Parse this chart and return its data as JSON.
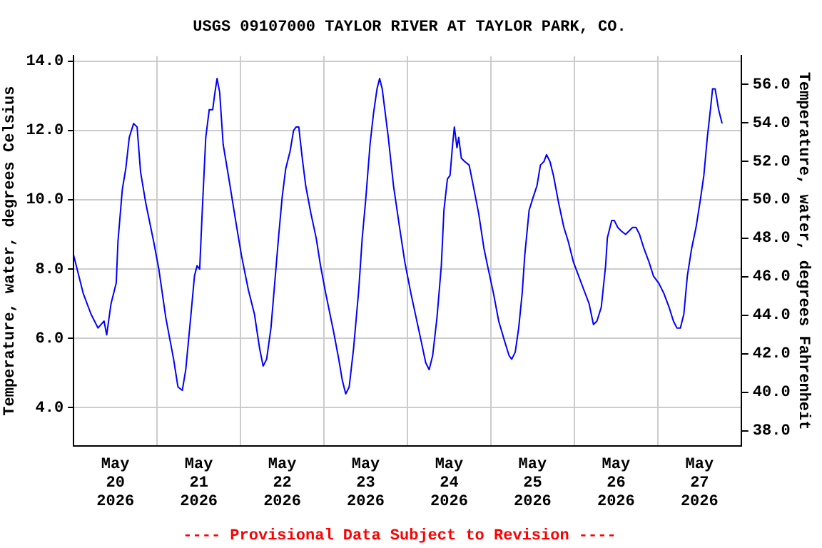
{
  "chart_data": {
    "type": "line",
    "title": "USGS 09107000 TAYLOR RIVER AT TAYLOR PARK, CO.",
    "ylabel": "Temperature, water, degrees Celsius",
    "y2label": "Temperature, water, degrees Fahrenheit",
    "annotations": [
      "---- Provisional Data Subject to Revision ----"
    ],
    "x": [
      "2026-05-20T00:00",
      "2026-05-20T02:45",
      "2026-05-20T05:00",
      "2026-05-20T07:00",
      "2026-05-20T08:45",
      "2026-05-20T09:30",
      "2026-05-20T10:45",
      "2026-05-20T12:15",
      "2026-05-20T12:45",
      "2026-05-20T14:00",
      "2026-05-20T15:00",
      "2026-05-20T16:00",
      "2026-05-20T17:15",
      "2026-05-20T18:15",
      "2026-05-20T19:15",
      "2026-05-20T20:45",
      "2026-05-20T23:00",
      "2026-05-21T00:30",
      "2026-05-21T02:30",
      "2026-05-21T04:45",
      "2026-05-21T06:00",
      "2026-05-21T07:15",
      "2026-05-21T08:15",
      "2026-05-21T09:45",
      "2026-05-21T10:45",
      "2026-05-21T11:30",
      "2026-05-21T12:15",
      "2026-05-21T13:00",
      "2026-05-21T14:00",
      "2026-05-21T15:00",
      "2026-05-21T16:00",
      "2026-05-21T16:30",
      "2026-05-21T17:15",
      "2026-05-21T18:00",
      "2026-05-21T19:00",
      "2026-05-21T20:30",
      "2026-05-21T22:45",
      "2026-05-22T00:15",
      "2026-05-22T02:15",
      "2026-05-22T04:00",
      "2026-05-22T05:30",
      "2026-05-22T06:30",
      "2026-05-22T07:30",
      "2026-05-22T08:45",
      "2026-05-22T10:00",
      "2026-05-22T11:00",
      "2026-05-22T12:00",
      "2026-05-22T13:00",
      "2026-05-22T14:15",
      "2026-05-22T15:15",
      "2026-05-22T16:00",
      "2026-05-22T16:45",
      "2026-05-22T17:45",
      "2026-05-22T18:45",
      "2026-05-22T20:15",
      "2026-05-22T21:45",
      "2026-05-22T23:00",
      "2026-05-23T00:30",
      "2026-05-23T02:45",
      "2026-05-23T04:15",
      "2026-05-23T05:15",
      "2026-05-23T06:15",
      "2026-05-23T07:15",
      "2026-05-23T08:30",
      "2026-05-23T10:00",
      "2026-05-23T11:00",
      "2026-05-23T12:00",
      "2026-05-23T13:15",
      "2026-05-23T14:15",
      "2026-05-23T15:15",
      "2026-05-23T16:00",
      "2026-05-23T16:45",
      "2026-05-23T18:30",
      "2026-05-23T20:00",
      "2026-05-23T21:45",
      "2026-05-23T23:15",
      "2026-05-24T01:00",
      "2026-05-24T02:30",
      "2026-05-24T04:00",
      "2026-05-24T05:15",
      "2026-05-24T06:15",
      "2026-05-24T07:15",
      "2026-05-24T08:30",
      "2026-05-24T09:45",
      "2026-05-24T10:30",
      "2026-05-24T11:30",
      "2026-05-24T12:15",
      "2026-05-24T13:00",
      "2026-05-24T13:30",
      "2026-05-24T14:15",
      "2026-05-24T14:45",
      "2026-05-24T15:30",
      "2026-05-24T16:30",
      "2026-05-24T17:45",
      "2026-05-24T18:45",
      "2026-05-24T20:30",
      "2026-05-24T22:00",
      "2026-05-24T23:15",
      "2026-05-25T00:45",
      "2026-05-25T02:15",
      "2026-05-25T04:00",
      "2026-05-25T05:15",
      "2026-05-25T06:00",
      "2026-05-25T07:00",
      "2026-05-25T08:00",
      "2026-05-25T09:00",
      "2026-05-25T09:45",
      "2026-05-25T11:00",
      "2026-05-25T12:15",
      "2026-05-25T13:15",
      "2026-05-25T14:15",
      "2026-05-25T15:15",
      "2026-05-25T16:00",
      "2026-05-25T17:00",
      "2026-05-25T18:00",
      "2026-05-25T19:30",
      "2026-05-25T21:00",
      "2026-05-25T22:15",
      "2026-05-25T23:45",
      "2026-05-26T01:15",
      "2026-05-26T02:45",
      "2026-05-26T04:15",
      "2026-05-26T05:30",
      "2026-05-26T06:30",
      "2026-05-26T07:45",
      "2026-05-26T09:00",
      "2026-05-26T09:30",
      "2026-05-26T10:45",
      "2026-05-26T11:30",
      "2026-05-26T12:30",
      "2026-05-26T13:30",
      "2026-05-26T14:45",
      "2026-05-26T15:45",
      "2026-05-26T16:45",
      "2026-05-26T17:45",
      "2026-05-26T18:45",
      "2026-05-26T20:00",
      "2026-05-26T21:30",
      "2026-05-26T22:45",
      "2026-05-27T00:15",
      "2026-05-27T01:45",
      "2026-05-27T03:15",
      "2026-05-27T04:30",
      "2026-05-27T05:30",
      "2026-05-27T06:30",
      "2026-05-27T07:30",
      "2026-05-27T08:30",
      "2026-05-27T09:45",
      "2026-05-27T11:00",
      "2026-05-27T12:15",
      "2026-05-27T13:15",
      "2026-05-27T14:15",
      "2026-05-27T15:15",
      "2026-05-27T15:45",
      "2026-05-27T16:30",
      "2026-05-27T17:30",
      "2026-05-27T18:30"
    ],
    "series": [
      {
        "color": "#0000ff",
        "values": [
          8.4,
          7.3,
          6.7,
          6.3,
          6.5,
          6.1,
          7.0,
          7.6,
          8.8,
          10.3,
          10.9,
          11.8,
          12.2,
          12.1,
          10.8,
          9.9,
          8.8,
          8.0,
          6.6,
          5.4,
          4.6,
          4.5,
          5.1,
          6.7,
          7.8,
          8.1,
          8.0,
          9.7,
          11.8,
          12.6,
          12.6,
          13.0,
          13.5,
          13.1,
          11.6,
          10.7,
          9.3,
          8.4,
          7.4,
          6.7,
          5.7,
          5.2,
          5.4,
          6.3,
          7.8,
          9.0,
          10.1,
          10.9,
          11.4,
          12.0,
          12.1,
          12.1,
          11.2,
          10.4,
          9.6,
          8.9,
          8.1,
          7.3,
          6.2,
          5.4,
          4.8,
          4.4,
          4.6,
          5.7,
          7.4,
          8.9,
          10.0,
          11.6,
          12.5,
          13.2,
          13.5,
          13.2,
          11.8,
          10.4,
          9.2,
          8.2,
          7.3,
          6.6,
          5.9,
          5.3,
          5.1,
          5.5,
          6.6,
          8.1,
          9.7,
          10.6,
          10.7,
          11.6,
          12.1,
          11.5,
          11.8,
          11.2,
          11.1,
          11.0,
          10.5,
          9.6,
          8.6,
          8.0,
          7.3,
          6.5,
          5.9,
          5.5,
          5.4,
          5.6,
          6.3,
          7.3,
          8.4,
          9.7,
          10.1,
          10.4,
          11.0,
          11.1,
          11.3,
          11.1,
          10.7,
          9.9,
          9.2,
          8.8,
          8.2,
          7.8,
          7.4,
          7.0,
          6.4,
          6.5,
          6.9,
          8.1,
          8.9,
          9.4,
          9.4,
          9.2,
          9.1,
          9.0,
          9.1,
          9.2,
          9.2,
          9.0,
          8.6,
          8.2,
          7.8,
          7.6,
          7.3,
          6.9,
          6.5,
          6.3,
          6.3,
          6.7,
          7.8,
          8.6,
          9.2,
          10.0,
          10.7,
          11.8,
          12.7,
          13.2,
          13.2,
          12.6,
          12.2
        ]
      }
    ],
    "xlim": [
      "2026-05-20T00:00",
      "2026-05-28T00:00"
    ],
    "xticks": [
      {
        "value": "2026-05-20T00:00",
        "label": null
      },
      {
        "value": "2026-05-20T12:00",
        "label": "May\n20\n2026"
      },
      {
        "value": "2026-05-21T00:00",
        "label": null
      },
      {
        "value": "2026-05-21T12:00",
        "label": "May\n21\n2026"
      },
      {
        "value": "2026-05-22T00:00",
        "label": null
      },
      {
        "value": "2026-05-22T12:00",
        "label": "May\n22\n2026"
      },
      {
        "value": "2026-05-23T00:00",
        "label": null
      },
      {
        "value": "2026-05-23T12:00",
        "label": "May\n23\n2026"
      },
      {
        "value": "2026-05-24T00:00",
        "label": null
      },
      {
        "value": "2026-05-24T12:00",
        "label": "May\n24\n2026"
      },
      {
        "value": "2026-05-25T00:00",
        "label": null
      },
      {
        "value": "2026-05-25T12:00",
        "label": "May\n25\n2026"
      },
      {
        "value": "2026-05-26T00:00",
        "label": null
      },
      {
        "value": "2026-05-26T12:00",
        "label": "May\n26\n2026"
      },
      {
        "value": "2026-05-27T00:00",
        "label": null
      },
      {
        "value": "2026-05-27T12:00",
        "label": "May\n27\n2026"
      },
      {
        "value": "2026-05-28T00:00",
        "label": null
      }
    ],
    "ylim": [
      2.9,
      14.15
    ],
    "yticks": [
      {
        "value": 4,
        "label": "4.0"
      },
      {
        "value": 6,
        "label": "6.0"
      },
      {
        "value": 8,
        "label": "8.0"
      },
      {
        "value": 10,
        "label": "10.0"
      },
      {
        "value": 12,
        "label": "12.0"
      },
      {
        "value": 14,
        "label": "14.0"
      }
    ],
    "y2lim": [
      37.22,
      57.47
    ],
    "y2ticks": [
      {
        "value": 38,
        "label": "38.0"
      },
      {
        "value": 40,
        "label": "40.0"
      },
      {
        "value": 42,
        "label": "42.0"
      },
      {
        "value": 44,
        "label": "44.0"
      },
      {
        "value": 46,
        "label": "46.0"
      },
      {
        "value": 48,
        "label": "48.0"
      },
      {
        "value": 50,
        "label": "50.0"
      },
      {
        "value": 52,
        "label": "52.0"
      },
      {
        "value": 54,
        "label": "54.0"
      },
      {
        "value": 56,
        "label": "56.0"
      }
    ],
    "grid": true,
    "legend": false,
    "marker": "none",
    "line_style": "solid"
  }
}
